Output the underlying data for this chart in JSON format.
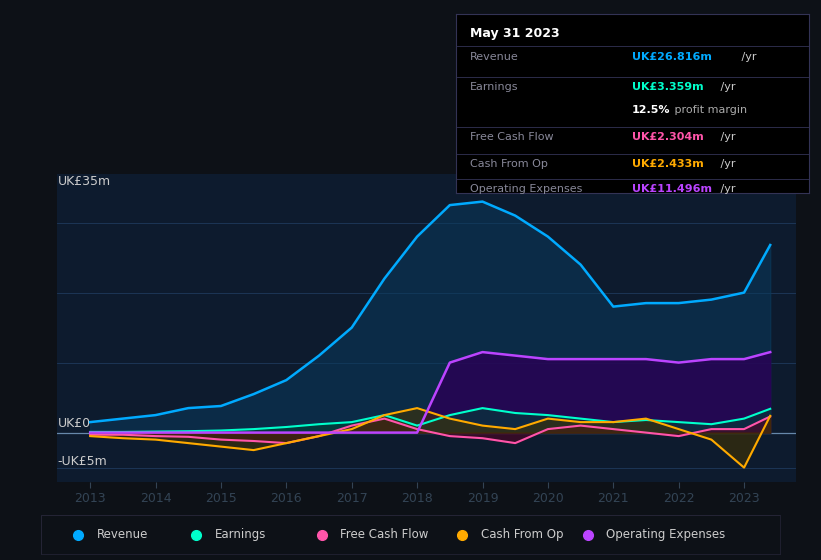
{
  "background_color": "#0d1117",
  "plot_bg_color": "#0d1b2e",
  "ylim": [
    -7,
    37
  ],
  "xlim": [
    2012.5,
    2023.8
  ],
  "ylabel_top": "UK£35m",
  "ylabel_zero": "UK£0",
  "ylabel_neg": "-UK£5m",
  "xlabel_ticks": [
    2013,
    2014,
    2015,
    2016,
    2017,
    2018,
    2019,
    2020,
    2021,
    2022,
    2023
  ],
  "years": [
    2013,
    2013.5,
    2014,
    2014.5,
    2015,
    2015.5,
    2016,
    2016.5,
    2017,
    2017.5,
    2018,
    2018.5,
    2019,
    2019.5,
    2020,
    2020.5,
    2021,
    2021.5,
    2022,
    2022.5,
    2023,
    2023.4
  ],
  "revenue": [
    1.5,
    2.0,
    2.5,
    3.5,
    3.8,
    5.5,
    7.5,
    11.0,
    15.0,
    22.0,
    28.0,
    32.5,
    33.0,
    31.0,
    28.0,
    24.0,
    18.0,
    18.5,
    18.5,
    19.0,
    20.0,
    26.8
  ],
  "earnings": [
    0.1,
    0.1,
    0.15,
    0.2,
    0.3,
    0.5,
    0.8,
    1.2,
    1.5,
    2.5,
    1.0,
    2.5,
    3.5,
    2.8,
    2.5,
    2.0,
    1.5,
    1.8,
    1.5,
    1.2,
    2.0,
    3.4
  ],
  "free_cash_flow": [
    -0.3,
    -0.3,
    -0.5,
    -0.6,
    -1.0,
    -1.2,
    -1.5,
    -0.5,
    1.0,
    2.0,
    0.5,
    -0.5,
    -0.8,
    -1.5,
    0.5,
    1.0,
    0.5,
    0.0,
    -0.5,
    0.5,
    0.5,
    2.3
  ],
  "cash_from_op": [
    -0.5,
    -0.8,
    -1.0,
    -1.5,
    -2.0,
    -2.5,
    -1.5,
    -0.5,
    0.5,
    2.5,
    3.5,
    2.0,
    1.0,
    0.5,
    2.0,
    1.5,
    1.5,
    2.0,
    0.5,
    -1.0,
    -5.0,
    2.4
  ],
  "op_expenses": [
    0,
    0,
    0,
    0,
    0,
    0,
    0,
    0,
    0,
    0,
    0,
    10.0,
    11.5,
    11.0,
    10.5,
    10.5,
    10.5,
    10.5,
    10.0,
    10.5,
    10.5,
    11.5
  ],
  "revenue_color": "#00aaff",
  "revenue_fill": "#0a3a5c",
  "earnings_color": "#00ffcc",
  "earnings_fill": "#004433",
  "free_cash_flow_color": "#ff55aa",
  "free_cash_flow_fill": "#550022",
  "cash_from_op_color": "#ffaa00",
  "cash_from_op_fill": "#443300",
  "op_expenses_color": "#bb44ff",
  "op_expenses_fill": "#2a0055",
  "info_box": {
    "date": "May 31 2023",
    "revenue_label": "Revenue",
    "revenue_value": "UK£26.816m",
    "earnings_label": "Earnings",
    "earnings_value": "UK£3.359m",
    "margin_value": "12.5%",
    "margin_text": " profit margin",
    "fcf_label": "Free Cash Flow",
    "fcf_value": "UK£2.304m",
    "cashop_label": "Cash From Op",
    "cashop_value": "UK£2.433m",
    "opex_label": "Operating Expenses",
    "opex_value": "UK£11.496m",
    "per_yr": " /yr"
  },
  "legend": [
    {
      "label": "Revenue",
      "color": "#00aaff"
    },
    {
      "label": "Earnings",
      "color": "#00ffcc"
    },
    {
      "label": "Free Cash Flow",
      "color": "#ff55aa"
    },
    {
      "label": "Cash From Op",
      "color": "#ffaa00"
    },
    {
      "label": "Operating Expenses",
      "color": "#bb44ff"
    }
  ]
}
